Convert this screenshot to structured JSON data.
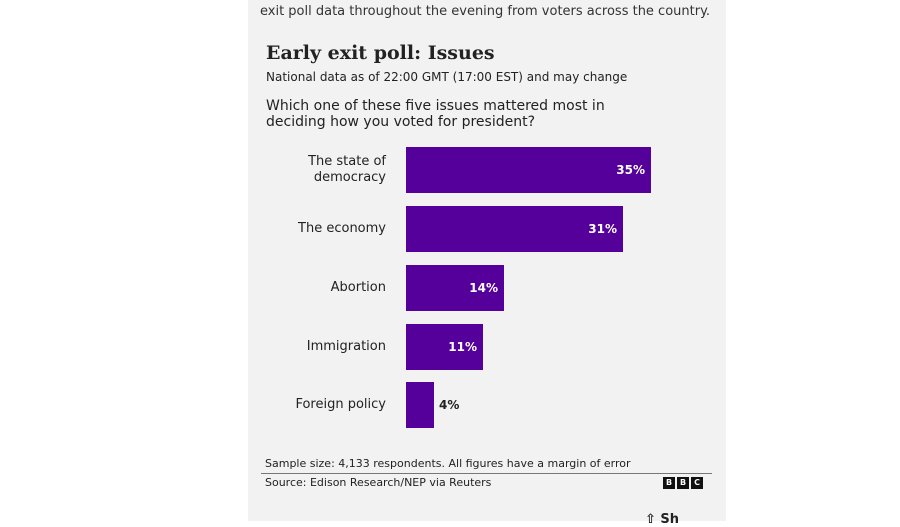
{
  "intro_text": "exit poll data throughout the evening from voters across the country.",
  "chart_data": {
    "type": "bar",
    "orientation": "horizontal",
    "title": "Early exit poll: Issues",
    "subtitle": "National data as of 22:00 GMT (17:00 EST) and may change",
    "question": "Which one of these five issues mattered most in deciding how you voted for president?",
    "categories": [
      "The state of democracy",
      "The economy",
      "Abortion",
      "Immigration",
      "Foreign policy"
    ],
    "values": [
      35,
      31,
      14,
      11,
      4
    ],
    "data_labels": [
      "35%",
      "31%",
      "14%",
      "11%",
      "4%"
    ],
    "unit": "%",
    "color": "#55009a",
    "grid": false
  },
  "footer": {
    "sample": "Sample size: 4,133 respondents. All figures have a margin of error",
    "source": "Source: Edison Research/NEP via Reuters",
    "logo": "BBC"
  },
  "share_label": "Sh"
}
